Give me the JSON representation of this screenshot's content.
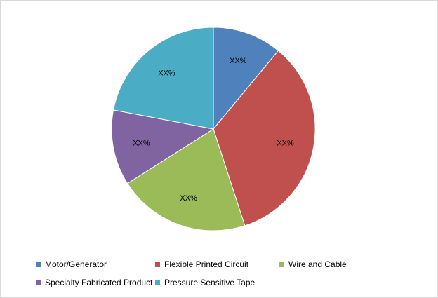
{
  "chart_data": {
    "type": "pie",
    "categories": [
      "Motor/Generator",
      "Flexible Printed Circuit",
      "Wire and Cable",
      "Specialty Fabricated Product",
      "Pressure Sensitive Tape"
    ],
    "values": [
      11,
      34,
      21,
      12,
      22
    ],
    "data_labels": [
      "XX%",
      "XX%",
      "XX%",
      "XX%",
      "XX%"
    ],
    "colors": [
      "#4f81bd",
      "#c0504d",
      "#9bbb59",
      "#8064a2",
      "#4bacc6"
    ],
    "start_angle_deg": 0,
    "direction": "clockwise",
    "legend_position": "bottom",
    "title": ""
  }
}
